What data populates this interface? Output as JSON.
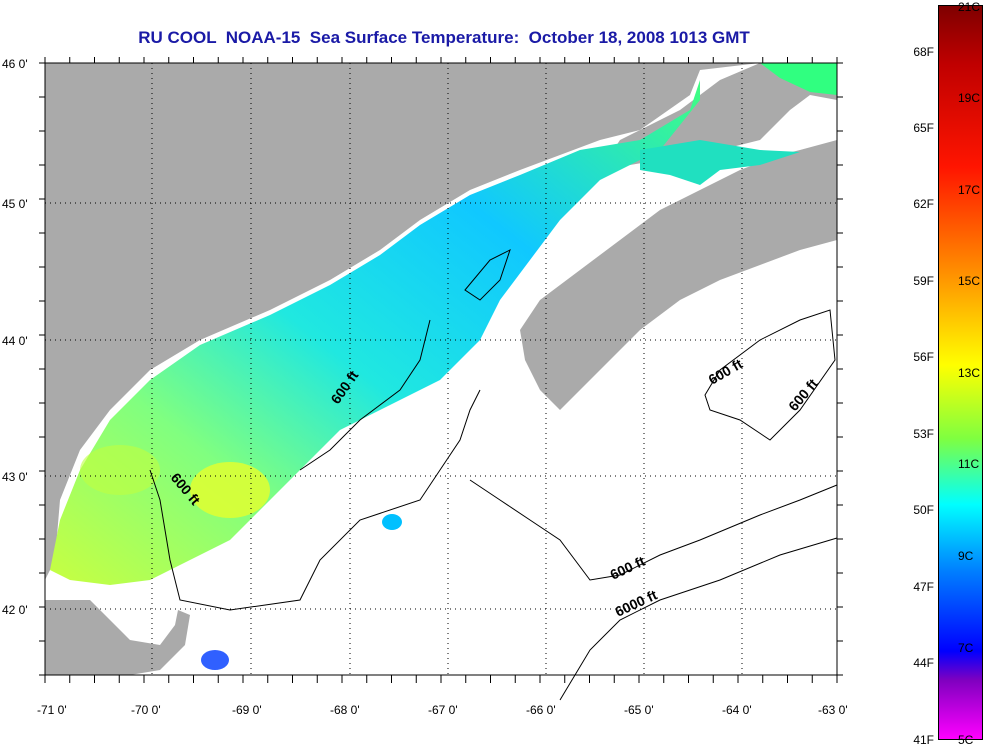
{
  "title": "RU COOL  NOAA-15  Sea Surface Temperature:  October 18, 2008 1013 GMT",
  "map": {
    "lat_ticks": [
      "46 0'",
      "45 0'",
      "44 0'",
      "43 0'",
      "42 0'"
    ],
    "lon_ticks": [
      "-71 0'",
      "-70 0'",
      "-69 0'",
      "-68 0'",
      "-67 0'",
      "-66 0'",
      "-65 0'",
      "-64 0'",
      "-63 0'"
    ],
    "contour_labels": [
      "600 ft",
      "600 ft",
      "600 ft",
      "600 ft",
      "600 ft",
      "6000 ft"
    ],
    "colors": {
      "land": "#aaaaaa",
      "no_data": "#ffffff",
      "contour": "#000000"
    }
  },
  "colorbar": {
    "fahrenheit_labels": [
      "68F",
      "65F",
      "62F",
      "59F",
      "56F",
      "53F",
      "50F",
      "47F",
      "44F",
      "41F"
    ],
    "celsius_labels": [
      "21C",
      "19C",
      "17C",
      "15C",
      "13C",
      "11C",
      "9C",
      "7C",
      "5C"
    ]
  }
}
